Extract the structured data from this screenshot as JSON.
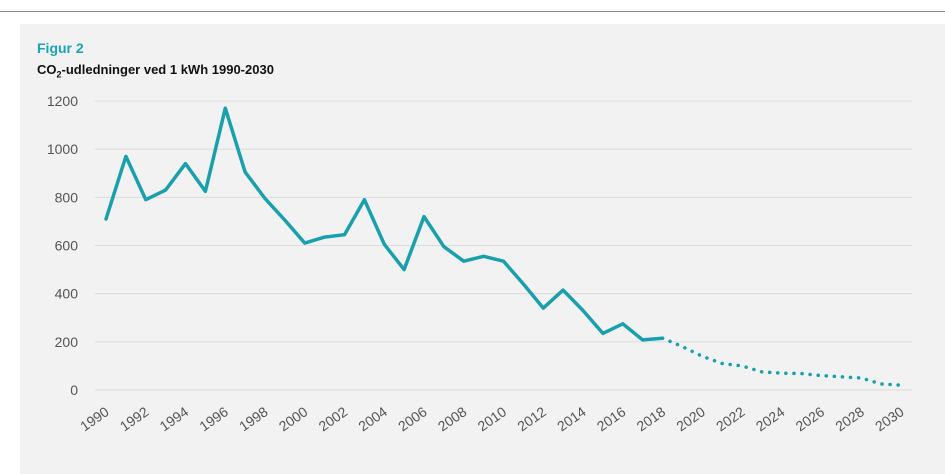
{
  "figure": {
    "label": "Figur 2",
    "title_pre": "CO",
    "title_sub": "2",
    "title_post": "-udledninger ved 1 kWh 1990-2030"
  },
  "colors": {
    "line": "#1a9fac",
    "panel": "#f2f2f2",
    "grid": "#dcdcdc",
    "text": "#555555"
  },
  "chart_data": {
    "type": "line",
    "title": "CO2-udledninger ved 1 kWh 1990-2030",
    "xlabel": "",
    "ylabel": "",
    "ylim": [
      0,
      1200
    ],
    "yticks": [
      0,
      200,
      400,
      600,
      800,
      1000,
      1200
    ],
    "xlim": [
      1990,
      2030
    ],
    "xticks": [
      1990,
      1992,
      1994,
      1996,
      1998,
      2000,
      2002,
      2004,
      2006,
      2008,
      2010,
      2012,
      2014,
      2016,
      2018,
      2020,
      2022,
      2024,
      2026,
      2028,
      2030
    ],
    "grid": true,
    "legend": "none",
    "series": [
      {
        "style": "solid",
        "x": [
          1990,
          1991,
          1992,
          1993,
          1994,
          1995,
          1996,
          1997,
          1998,
          1999,
          2000,
          2001,
          2002,
          2003,
          2004,
          2005,
          2006,
          2007,
          2008,
          2009,
          2010,
          2011,
          2012,
          2013,
          2014,
          2015,
          2016,
          2017,
          2018
        ],
        "y": [
          710,
          970,
          790,
          830,
          940,
          825,
          1170,
          905,
          795,
          705,
          610,
          635,
          645,
          790,
          605,
          500,
          720,
          595,
          535,
          555,
          535,
          440,
          340,
          415,
          330,
          235,
          275,
          208,
          215
        ]
      },
      {
        "style": "dotted",
        "x": [
          2018,
          2019,
          2020,
          2021,
          2022,
          2023,
          2024,
          2025,
          2026,
          2027,
          2028,
          2029,
          2030
        ],
        "y": [
          215,
          180,
          140,
          110,
          100,
          75,
          70,
          68,
          60,
          55,
          50,
          25,
          20
        ]
      }
    ]
  }
}
